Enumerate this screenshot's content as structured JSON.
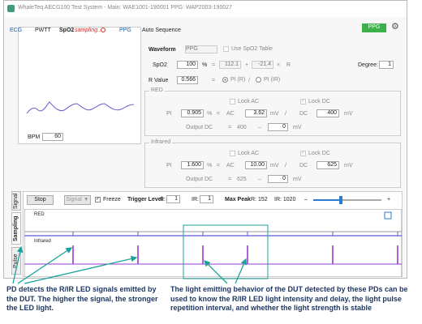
{
  "window": {
    "title": "WhaleTeq AECG100 Test System - Main: WAE1001-190001 PPG: WAP2003-190027"
  },
  "tabs": {
    "ecg": "ECG",
    "pwtt": "PWTT",
    "spo2": "SpO2",
    "spo2_status": "sampling...",
    "ppg": "PPG",
    "auto_sequence": "Auto Sequence"
  },
  "mode_button": "PPG",
  "preview": {
    "bpm_label": "BPM",
    "bpm": "60"
  },
  "settings": {
    "waveform_label": "Waveform",
    "waveform": "PPG",
    "use_table": "Use SpO2 Table",
    "spo2_label": "SpO2",
    "spo2": "100",
    "spo2_unit": "%",
    "eq": "=",
    "coef_a": "112.1",
    "plus": "+",
    "coef_b": "-21.4",
    "times": "×",
    "r": "R",
    "degree_label": "Degree:",
    "degree": "1",
    "r_value_label": "R Value",
    "r_value": "0.566",
    "r_eq": "=",
    "pi_r": "PI (R)",
    "slash": "/",
    "pi_ir": "PI (IR)"
  },
  "red": {
    "title": "RED",
    "lock_ac": "Lock AC",
    "lock_dc": "Lock DC",
    "pi_label": "PI",
    "pi": "0.905",
    "pct": "%",
    "eq": "=",
    "ac_label": "AC",
    "ac": "3.62",
    "ac_unit": "mV",
    "slash": "/",
    "dc_label": "DC",
    "dc": "400",
    "dc_unit": "mV",
    "out_label": "Output DC",
    "out_eq": "=",
    "out_dc": "400",
    "minus": "–",
    "offset": "0",
    "offset_unit": "mV"
  },
  "infrared": {
    "title": "Infrared",
    "lock_ac": "Lock AC",
    "lock_dc": "Lock DC",
    "pi_label": "PI",
    "pi": "1.600",
    "pct": "%",
    "eq": "=",
    "ac_label": "AC",
    "ac": "10.00",
    "ac_unit": "mV",
    "slash": "/",
    "dc_label": "DC",
    "dc": "625",
    "dc_unit": "mV",
    "out_label": "Output DC",
    "out_eq": "=",
    "out_dc": "625",
    "minus": "–",
    "offset": "0",
    "offset_unit": "mV"
  },
  "signal": {
    "side_tabs": [
      "Signal",
      "Sampling",
      "Pulse"
    ],
    "stop": "Stop",
    "signal_menu": "Signal ▼",
    "freeze": "Freeze",
    "trigger_label": "Trigger Level",
    "r_label": "R:",
    "r_trigger": "1",
    "ir_label": "IR:",
    "ir_trigger": "1",
    "max_peak": "Max Peak",
    "max_r": "R: 152",
    "max_ir": "IR: 1020",
    "minus": "–",
    "plus": "+",
    "red_label": "RED",
    "infrared_label": "Infrared"
  },
  "annotations": {
    "left": "PD detects the R/IR LED signals emitted by the DUT. The higher the signal, the stronger the LED light.",
    "right": "The light emitting behavior of the DUT detected by these PDs can be used to know the R/IR LED light intensity and delay, the light pulse repetition interval, and whether the light strength is stable"
  }
}
